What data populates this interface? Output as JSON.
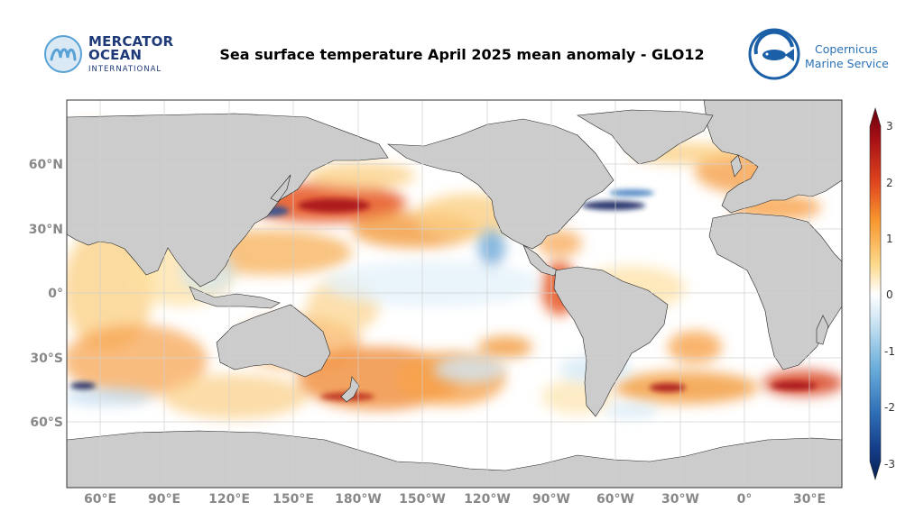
{
  "title": "Sea surface temperature April 2025 mean anomaly - GLO12",
  "logos": {
    "left": {
      "line1": "MERCATOR",
      "line2": "OCEAN",
      "line3": "INTERNATIONAL"
    },
    "right": {
      "line1": "Copernicus",
      "line2": "Marine Service"
    }
  },
  "lat_labels": [
    "60°N",
    "30°N",
    "0°",
    "30°S",
    "60°S"
  ],
  "lon_labels": [
    "60°E",
    "90°E",
    "120°E",
    "150°E",
    "180°W",
    "150°W",
    "120°W",
    "90°W",
    "60°W",
    "30°W",
    "0°",
    "30°E"
  ],
  "colorbar": {
    "ticks": [
      "3",
      "2",
      "1",
      "0",
      "-1",
      "-2",
      "-3"
    ],
    "min": -3,
    "max": 3
  },
  "colors": {
    "land": "#cccccc",
    "ocean_neutral": "#ffffff",
    "warm_light": "#fde0a0",
    "warm_mid": "#f7a24a",
    "warm_strong": "#d9451e",
    "warm_extreme": "#9a0d12",
    "cool_light": "#d3e8f6",
    "cool_mid": "#6aa8d8",
    "cool_strong": "#1c4e9a",
    "cool_extreme": "#0b1f5c"
  }
}
